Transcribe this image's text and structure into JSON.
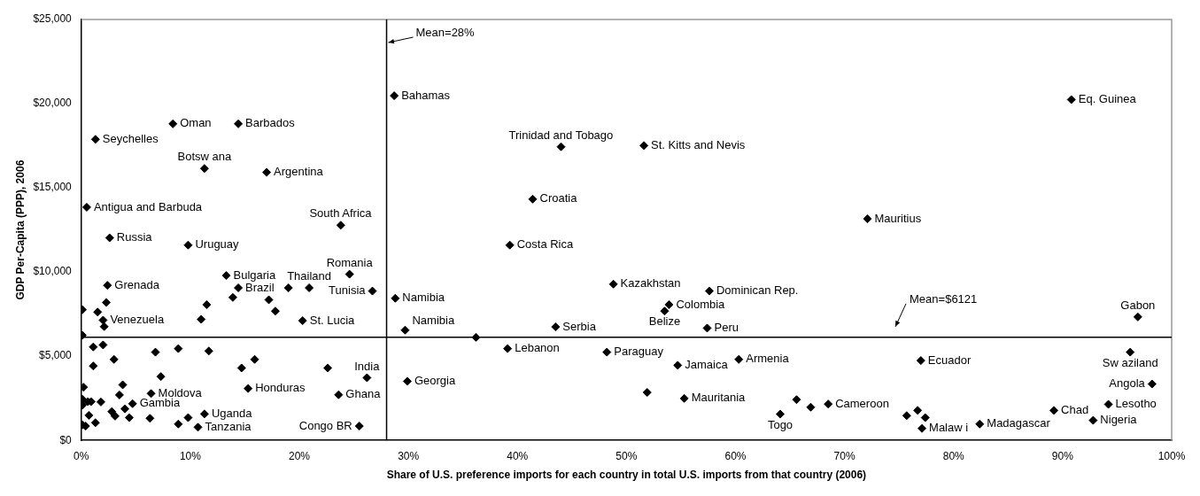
{
  "chart_data": {
    "type": "scatter",
    "xlabel": "Share of U.S. preference imports for each country in total U.S. imports from that country (2006)",
    "ylabel": "GDP Per-Capita (PPP), 2006",
    "xlim": [
      0,
      100
    ],
    "ylim": [
      0,
      25000
    ],
    "xticks": [
      {
        "value": 0,
        "label": "0%"
      },
      {
        "value": 10,
        "label": "10%"
      },
      {
        "value": 20,
        "label": "20%"
      },
      {
        "value": 30,
        "label": "30%"
      },
      {
        "value": 40,
        "label": "40%"
      },
      {
        "value": 50,
        "label": "50%"
      },
      {
        "value": 60,
        "label": "60%"
      },
      {
        "value": 70,
        "label": "70%"
      },
      {
        "value": 80,
        "label": "80%"
      },
      {
        "value": 90,
        "label": "90%"
      },
      {
        "value": 100,
        "label": "100%"
      }
    ],
    "yticks": [
      {
        "value": 0,
        "label": "$0"
      },
      {
        "value": 5000,
        "label": "$5,000"
      },
      {
        "value": 10000,
        "label": "$10,000"
      },
      {
        "value": 15000,
        "label": "$15,000"
      },
      {
        "value": 20000,
        "label": "$20,000"
      },
      {
        "value": 25000,
        "label": "$25,000"
      }
    ],
    "grid": false,
    "legend": false,
    "marker": "diamond",
    "series": [
      {
        "color": "#000000",
        "x": [
          8.4,
          14.4,
          1.3,
          11.3,
          17.0,
          0.5,
          2.6,
          9.8,
          23.8,
          28.7,
          44.0,
          51.6,
          41.4,
          39.3,
          90.8,
          72.1,
          2.4,
          13.3,
          14.4,
          24.6,
          26.7,
          2.3,
          0.1,
          1.5,
          2.0,
          2.1,
          13.9,
          11.5,
          11.0,
          17.2,
          17.8,
          19.0,
          20.9,
          20.3,
          0.1,
          1.1,
          2.0,
          1.1,
          3.0,
          6.8,
          8.9,
          11.7,
          7.3,
          14.7,
          15.9,
          15.3,
          22.6,
          26.2,
          23.6,
          25.5,
          0.2,
          3.8,
          6.4,
          3.5,
          0.1,
          0.6,
          0.1,
          0.9,
          1.8,
          4.7,
          4.0,
          2.8,
          3.1,
          4.4,
          0.7,
          1.3,
          0.1,
          0.4,
          6.3,
          8.9,
          9.8,
          11.3,
          10.7,
          28.8,
          29.7,
          36.2,
          39.1,
          43.5,
          29.9,
          48.8,
          57.6,
          53.9,
          53.5,
          57.4,
          48.2,
          54.7,
          51.9,
          55.3,
          60.3,
          96.9,
          96.2,
          77.0,
          98.2,
          94.2,
          92.8,
          89.2,
          82.4,
          77.1,
          77.4,
          76.7,
          75.7,
          68.5,
          66.9,
          65.6,
          64.1
        ],
        "values": [
          18800,
          18800,
          17880,
          16150,
          15920,
          13850,
          12030,
          11600,
          12780,
          20470,
          17440,
          17510,
          14330,
          11600,
          20240,
          13160,
          9210,
          9790,
          9060,
          9870,
          8870,
          8190,
          7760,
          7620,
          7140,
          6760,
          8490,
          8060,
          7190,
          8350,
          7680,
          9060,
          9060,
          7110,
          6240,
          5550,
          5670,
          4420,
          4810,
          5240,
          5450,
          5310,
          3790,
          4300,
          4810,
          3080,
          4300,
          3720,
          2710,
          850,
          3160,
          3300,
          2780,
          2700,
          2440,
          2300,
          2090,
          2300,
          2280,
          2180,
          1870,
          1710,
          1440,
          1350,
          1490,
          1050,
          920,
          850,
          1310,
          970,
          1350,
          1570,
          780,
          8440,
          6550,
          6120,
          5450,
          6740,
          3510,
          9280,
          8870,
          8060,
          7680,
          6670,
          5240,
          4460,
          2850,
          2490,
          4810,
          7330,
          5240,
          4740,
          3350,
          2140,
          1190,
          1780,
          970,
          710,
          1350,
          1780,
          1470,
          2160,
          1970,
          2420,
          1560
        ]
      }
    ],
    "ref_lines": [
      {
        "axis": "x",
        "value": 28,
        "label": "Mean=28%",
        "color": "#000000"
      },
      {
        "axis": "y",
        "value": 6121,
        "label": "Mean=$6121",
        "color": "#000000"
      }
    ],
    "annotations": [
      {
        "text": "Oman",
        "x": 8.4,
        "y": 18800
      },
      {
        "text": "Barbados",
        "x": 14.4,
        "y": 18800
      },
      {
        "text": "Seychelles",
        "x": 1.3,
        "y": 17880
      },
      {
        "text": "Botsw ana",
        "x": 11.3,
        "y": 16150
      },
      {
        "text": "Argentina",
        "x": 17.0,
        "y": 15920
      },
      {
        "text": "Antigua and Barbuda",
        "x": 0.5,
        "y": 13850
      },
      {
        "text": "Russia",
        "x": 2.6,
        "y": 12030
      },
      {
        "text": "Uruguay",
        "x": 9.8,
        "y": 11600
      },
      {
        "text": "South Africa",
        "x": 23.8,
        "y": 12780
      },
      {
        "text": "Bahamas",
        "x": 28.7,
        "y": 20470
      },
      {
        "text": "Trinidad and Tobago",
        "x": 44.0,
        "y": 17440
      },
      {
        "text": "St. Kitts and Nevis",
        "x": 51.6,
        "y": 17510
      },
      {
        "text": "Croatia",
        "x": 41.4,
        "y": 14330
      },
      {
        "text": "Costa Rica",
        "x": 39.3,
        "y": 11600
      },
      {
        "text": "Eq. Guinea",
        "x": 90.8,
        "y": 20240
      },
      {
        "text": "Mauritius",
        "x": 72.1,
        "y": 13160
      },
      {
        "text": "Grenada",
        "x": 2.4,
        "y": 9210
      },
      {
        "text": "Bulgaria",
        "x": 13.3,
        "y": 9790
      },
      {
        "text": "Brazil",
        "x": 14.4,
        "y": 9060
      },
      {
        "text": "Romania",
        "x": 24.6,
        "y": 9870
      },
      {
        "text": "Tunisia",
        "x": 26.7,
        "y": 8870
      },
      {
        "text": "Venezuela",
        "x": 2.0,
        "y": 7140
      },
      {
        "text": "Thailand",
        "x": 20.9,
        "y": 9060
      },
      {
        "text": "St. Lucia",
        "x": 20.3,
        "y": 7110
      },
      {
        "text": "Honduras",
        "x": 15.3,
        "y": 3080
      },
      {
        "text": "India",
        "x": 26.2,
        "y": 3720
      },
      {
        "text": "Ghana",
        "x": 23.6,
        "y": 2710
      },
      {
        "text": "Congo BR",
        "x": 25.5,
        "y": 850
      },
      {
        "text": "Moldova",
        "x": 6.4,
        "y": 2780
      },
      {
        "text": "Gambia",
        "x": 4.7,
        "y": 2180
      },
      {
        "text": "Uganda",
        "x": 11.3,
        "y": 1570
      },
      {
        "text": "Tanzania",
        "x": 10.7,
        "y": 780
      },
      {
        "text": "Namibia",
        "x": 28.8,
        "y": 8440
      },
      {
        "text": "Namibia",
        "x": 29.7,
        "y": 6550
      },
      {
        "text": "Lebanon",
        "x": 39.1,
        "y": 5450
      },
      {
        "text": "Serbia",
        "x": 43.5,
        "y": 6740
      },
      {
        "text": "Georgia",
        "x": 29.9,
        "y": 3510
      },
      {
        "text": "Kazakhstan",
        "x": 48.8,
        "y": 9280
      },
      {
        "text": "Dominican Rep.",
        "x": 57.6,
        "y": 8870
      },
      {
        "text": "Colombia",
        "x": 53.9,
        "y": 8060
      },
      {
        "text": "Belize",
        "x": 53.5,
        "y": 7680
      },
      {
        "text": "Peru",
        "x": 57.4,
        "y": 6670
      },
      {
        "text": "Paraguay",
        "x": 48.2,
        "y": 5240
      },
      {
        "text": "Jamaica",
        "x": 54.7,
        "y": 4460
      },
      {
        "text": "Mauritania",
        "x": 55.3,
        "y": 2490
      },
      {
        "text": "Armenia",
        "x": 60.3,
        "y": 4810
      },
      {
        "text": "Gabon",
        "x": 96.9,
        "y": 7330
      },
      {
        "text": "Sw aziland",
        "x": 96.2,
        "y": 5240
      },
      {
        "text": "Ecuador",
        "x": 77.0,
        "y": 4740
      },
      {
        "text": "Angola",
        "x": 98.2,
        "y": 3350
      },
      {
        "text": "Lesotho",
        "x": 94.2,
        "y": 2140
      },
      {
        "text": "Nigeria",
        "x": 92.8,
        "y": 1190
      },
      {
        "text": "Chad",
        "x": 89.2,
        "y": 1780
      },
      {
        "text": "Madagascar",
        "x": 82.4,
        "y": 970
      },
      {
        "text": "Malaw i",
        "x": 77.1,
        "y": 710
      },
      {
        "text": "Cameroon",
        "x": 68.5,
        "y": 2160
      },
      {
        "text": "Togo",
        "x": 64.1,
        "y": 1560
      }
    ]
  }
}
